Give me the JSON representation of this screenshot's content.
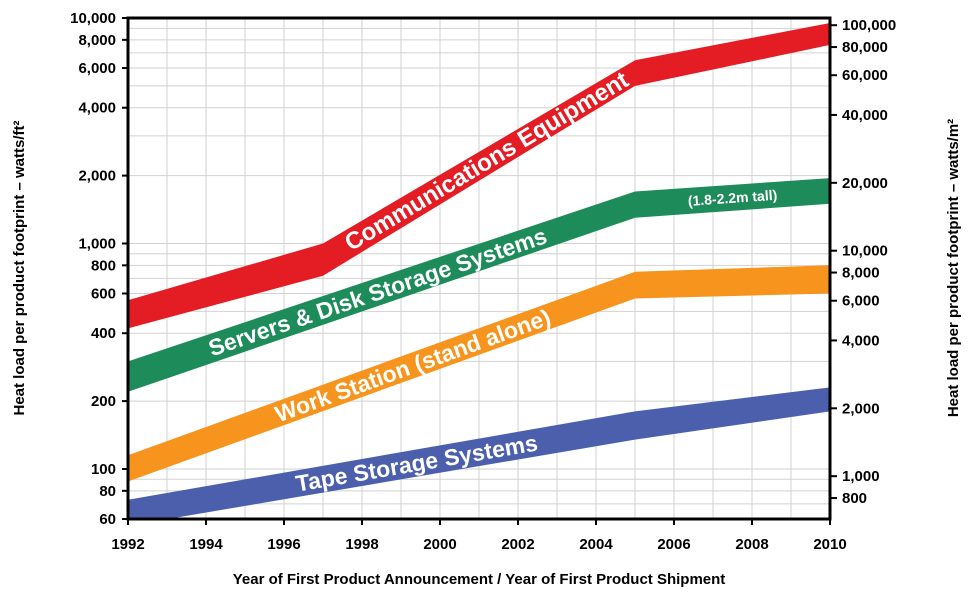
{
  "chart_data": {
    "type": "area",
    "xlabel": "Year of First Product Announcement / Year of First Product Shipment",
    "ylabel_left": "Heat load per product footprint – watts/ft²",
    "ylabel_right": "Heat load per product footprint – watts/m²",
    "y_scale": "log",
    "grid": true,
    "xlim": [
      1992,
      2010
    ],
    "ylim": [
      60,
      10000
    ],
    "x_ticks": [
      "1992",
      "1994",
      "1996",
      "1998",
      "2000",
      "2002",
      "2004",
      "2006",
      "2008",
      "2010"
    ],
    "y_ticks_left": [
      {
        "value": 60,
        "label": "60"
      },
      {
        "value": 80,
        "label": "80"
      },
      {
        "value": 100,
        "label": "100"
      },
      {
        "value": 200,
        "label": "200"
      },
      {
        "value": 400,
        "label": "400"
      },
      {
        "value": 600,
        "label": "600"
      },
      {
        "value": 800,
        "label": "800"
      },
      {
        "value": 1000,
        "label": "1,000"
      },
      {
        "value": 2000,
        "label": "2,000"
      },
      {
        "value": 4000,
        "label": "4,000"
      },
      {
        "value": 6000,
        "label": "6,000"
      },
      {
        "value": 8000,
        "label": "8,000"
      },
      {
        "value": 10000,
        "label": "10,000"
      }
    ],
    "y_ticks_right": [
      {
        "value": 800,
        "label": "800"
      },
      {
        "value": 1000,
        "label": "1,000"
      },
      {
        "value": 2000,
        "label": "2,000"
      },
      {
        "value": 4000,
        "label": "4,000"
      },
      {
        "value": 6000,
        "label": "6,000"
      },
      {
        "value": 8000,
        "label": "8,000"
      },
      {
        "value": 10000,
        "label": "10,000"
      },
      {
        "value": 20000,
        "label": "20,000"
      },
      {
        "value": 40000,
        "label": "40,000"
      },
      {
        "value": 60000,
        "label": "60,000"
      },
      {
        "value": 80000,
        "label": "80,000"
      },
      {
        "value": 100000,
        "label": "100,000"
      }
    ],
    "series": [
      {
        "name": "Communications Equipment",
        "color": "#e41c23",
        "x": [
          1992,
          1997,
          2005,
          2010
        ],
        "upper": [
          560,
          1000,
          6500,
          9500
        ],
        "lower": [
          420,
          720,
          5000,
          7600
        ]
      },
      {
        "name": "Servers & Disk Storage Systems",
        "color": "#1e8c5a",
        "x": [
          1992,
          2005,
          2010
        ],
        "upper": [
          300,
          1700,
          1950
        ],
        "lower": [
          220,
          1300,
          1500
        ],
        "annotation": "(1.8-2.2m tall)"
      },
      {
        "name": "Work Station (stand alone)",
        "color": "#f7941d",
        "x": [
          1992,
          2005,
          2010
        ],
        "upper": [
          115,
          750,
          800
        ],
        "lower": [
          88,
          570,
          600
        ]
      },
      {
        "name": "Tape Storage Systems",
        "color": "#4b5fad",
        "x": [
          1992,
          2005,
          2010
        ],
        "upper": [
          73,
          180,
          230
        ],
        "lower": [
          56,
          135,
          180
        ]
      }
    ],
    "band_labels": [
      {
        "series": 0,
        "text": "Communications Equipment"
      },
      {
        "series": 1,
        "text": "Servers & Disk Storage Systems"
      },
      {
        "series": 2,
        "text": "Work Station (stand alone)"
      },
      {
        "series": 3,
        "text": "Tape Storage Systems"
      }
    ]
  }
}
